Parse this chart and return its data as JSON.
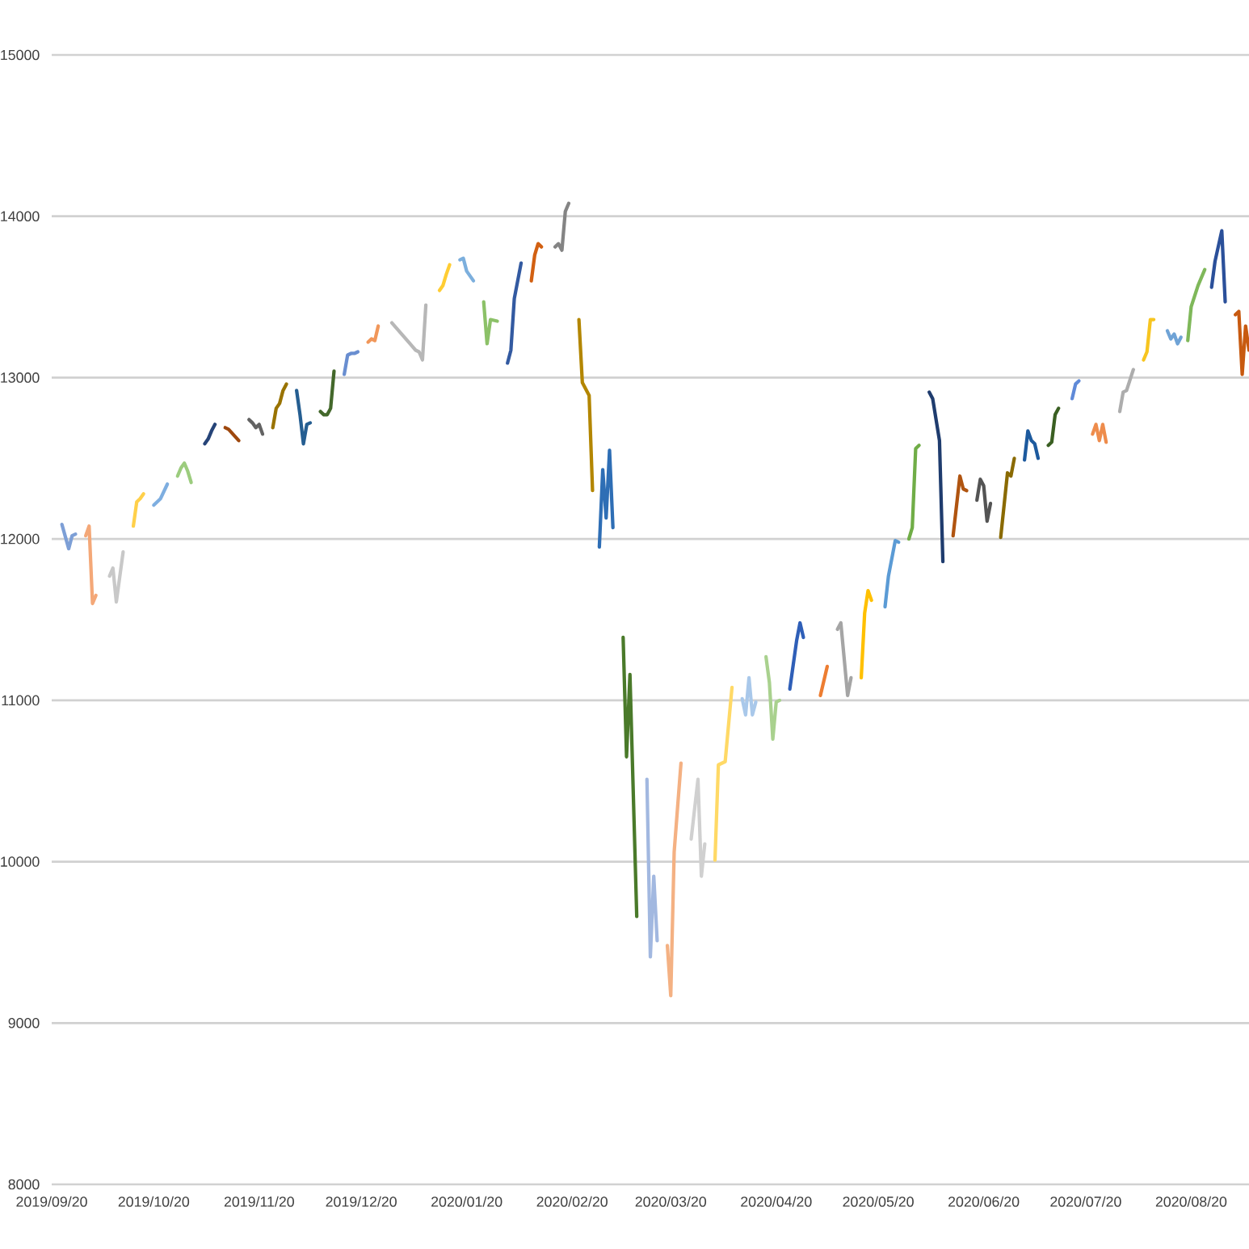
{
  "chart_data": {
    "type": "line",
    "xlim": [
      "2019-09-20",
      "2020-09-06"
    ],
    "ylim": [
      8000,
      15000
    ],
    "yticks": [
      8000,
      9000,
      10000,
      11000,
      12000,
      13000,
      14000,
      15000
    ],
    "xticks": [
      {
        "value": "2019-09-20",
        "label": "2019/09/20"
      },
      {
        "value": "2019-10-20",
        "label": "2019/10/20"
      },
      {
        "value": "2019-11-20",
        "label": "2019/11/20"
      },
      {
        "value": "2019-12-20",
        "label": "2019/12/20"
      },
      {
        "value": "2020-01-20",
        "label": "2020/01/20"
      },
      {
        "value": "2020-02-20",
        "label": "2020/02/20"
      },
      {
        "value": "2020-03-20",
        "label": "2020/03/20"
      },
      {
        "value": "2020-04-20",
        "label": "2020/04/20"
      },
      {
        "value": "2020-05-20",
        "label": "2020/05/20"
      },
      {
        "value": "2020-06-20",
        "label": "2020/06/20"
      },
      {
        "value": "2020-07-20",
        "label": "2020/07/20"
      },
      {
        "value": "2020-08-20",
        "label": "2020/08/20"
      }
    ],
    "grid": "y",
    "marker": "none",
    "line_style": "solid",
    "series": [
      {
        "color": "#7d9fd6",
        "x": [
          "2019-09-23",
          "2019-09-25",
          "2019-09-26",
          "2019-09-27"
        ],
        "values": [
          12090,
          11940,
          12020,
          12030
        ]
      },
      {
        "color": "#f4a878",
        "x": [
          "2019-09-30",
          "2019-10-01",
          "2019-10-02",
          "2019-10-03"
        ],
        "values": [
          12020,
          12080,
          11600,
          11650
        ]
      },
      {
        "color": "#c8c8c8",
        "x": [
          "2019-10-07",
          "2019-10-08",
          "2019-10-09",
          "2019-10-11"
        ],
        "values": [
          11770,
          11820,
          11610,
          11920
        ]
      },
      {
        "color": "#ffd04a",
        "x": [
          "2019-10-14",
          "2019-10-15",
          "2019-10-16",
          "2019-10-17"
        ],
        "values": [
          12080,
          12230,
          12250,
          12280
        ]
      },
      {
        "color": "#7eaee0",
        "x": [
          "2019-10-20",
          "2019-10-21",
          "2019-10-22",
          "2019-10-24"
        ],
        "values": [
          12210,
          12230,
          12250,
          12340
        ]
      },
      {
        "color": "#9ccc7e",
        "x": [
          "2019-10-27",
          "2019-10-28",
          "2019-10-29",
          "2019-10-30",
          "2019-10-31"
        ],
        "values": [
          12390,
          12440,
          12470,
          12420,
          12350
        ]
      },
      {
        "color": "#264478",
        "x": [
          "2019-11-04",
          "2019-11-05",
          "2019-11-06",
          "2019-11-07"
        ],
        "values": [
          12590,
          12620,
          12670,
          12710
        ]
      },
      {
        "color": "#9e480e",
        "x": [
          "2019-11-10",
          "2019-11-11",
          "2019-11-14"
        ],
        "values": [
          12690,
          12680,
          12610
        ]
      },
      {
        "color": "#636363",
        "x": [
          "2019-11-17",
          "2019-11-18",
          "2019-11-19",
          "2019-11-20",
          "2019-11-21"
        ],
        "values": [
          12740,
          12720,
          12690,
          12710,
          12650
        ]
      },
      {
        "color": "#997300",
        "x": [
          "2019-11-24",
          "2019-11-25",
          "2019-11-26",
          "2019-11-27",
          "2019-11-28"
        ],
        "values": [
          12690,
          12810,
          12840,
          12920,
          12960
        ]
      },
      {
        "color": "#255e91",
        "x": [
          "2019-12-01",
          "2019-12-02",
          "2019-12-03",
          "2019-12-04",
          "2019-12-05"
        ],
        "values": [
          12920,
          12770,
          12590,
          12710,
          12720
        ]
      },
      {
        "color": "#43682b",
        "x": [
          "2019-12-08",
          "2019-12-09",
          "2019-12-10",
          "2019-12-11",
          "2019-12-12"
        ],
        "values": [
          12790,
          12770,
          12770,
          12810,
          13040
        ]
      },
      {
        "color": "#698ed0",
        "x": [
          "2019-12-15",
          "2019-12-16",
          "2019-12-17",
          "2019-12-18",
          "2019-12-19"
        ],
        "values": [
          13020,
          13140,
          13150,
          13150,
          13160
        ]
      },
      {
        "color": "#f1975a",
        "x": [
          "2019-12-22",
          "2019-12-23",
          "2019-12-24",
          "2019-12-25"
        ],
        "values": [
          13220,
          13240,
          13230,
          13320
        ]
      },
      {
        "color": "#b7b7b7",
        "x": [
          "2019-12-29",
          "2020-01-05",
          "2020-01-06",
          "2020-01-07",
          "2020-01-08"
        ],
        "values": [
          13340,
          13170,
          13160,
          13110,
          13450
        ]
      },
      {
        "color": "#ffcd33",
        "x": [
          "2020-01-12",
          "2020-01-13",
          "2020-01-14",
          "2020-01-15"
        ],
        "values": [
          13540,
          13570,
          13640,
          13700
        ]
      },
      {
        "color": "#7cafdd",
        "x": [
          "2020-01-18",
          "2020-01-19",
          "2020-01-20",
          "2020-01-22"
        ],
        "values": [
          13730,
          13740,
          13660,
          13600
        ]
      },
      {
        "color": "#8cc168",
        "x": [
          "2020-01-25",
          "2020-01-26",
          "2020-01-27",
          "2020-01-29"
        ],
        "values": [
          13470,
          13210,
          13360,
          13350
        ]
      },
      {
        "color": "#335aa1",
        "x": [
          "2020-02-01",
          "2020-02-02",
          "2020-02-03",
          "2020-02-05"
        ],
        "values": [
          13090,
          13170,
          13490,
          13710
        ]
      },
      {
        "color": "#d26012",
        "x": [
          "2020-02-08",
          "2020-02-09",
          "2020-02-10",
          "2020-02-11"
        ],
        "values": [
          13600,
          13760,
          13830,
          13810
        ]
      },
      {
        "color": "#848484",
        "x": [
          "2020-02-15",
          "2020-02-16",
          "2020-02-17",
          "2020-02-18",
          "2020-02-19"
        ],
        "values": [
          13810,
          13830,
          13790,
          14030,
          14080
        ]
      },
      {
        "color": "#b38600",
        "x": [
          "2020-02-22",
          "2020-02-23",
          "2020-02-25",
          "2020-02-26"
        ],
        "values": [
          13360,
          12970,
          12890,
          12300
        ]
      },
      {
        "color": "#2e6eb5",
        "x": [
          "2020-02-28",
          "2020-02-29",
          "2020-03-01",
          "2020-03-02",
          "2020-03-03"
        ],
        "values": [
          11950,
          12430,
          12130,
          12550,
          12070
        ]
      },
      {
        "color": "#4a7a2a",
        "x": [
          "2020-03-06",
          "2020-03-07",
          "2020-03-08",
          "2020-03-10"
        ],
        "values": [
          11390,
          10650,
          11160,
          9660
        ]
      },
      {
        "color": "#a2b8e0",
        "x": [
          "2020-03-13",
          "2020-03-14",
          "2020-03-15",
          "2020-03-16"
        ],
        "values": [
          10510,
          9410,
          9910,
          9510
        ]
      },
      {
        "color": "#f4b183",
        "x": [
          "2020-03-19",
          "2020-03-20",
          "2020-03-21",
          "2020-03-23"
        ],
        "values": [
          9480,
          9170,
          10060,
          10610
        ]
      },
      {
        "color": "#d0d0d0",
        "x": [
          "2020-03-26",
          "2020-03-28",
          "2020-03-29",
          "2020-03-30"
        ],
        "values": [
          10140,
          10510,
          9910,
          10110
        ]
      },
      {
        "color": "#ffd966",
        "x": [
          "2020-04-02",
          "2020-04-03",
          "2020-04-05",
          "2020-04-07"
        ],
        "values": [
          10010,
          10600,
          10620,
          11080
        ]
      },
      {
        "color": "#a9c8ea",
        "x": [
          "2020-04-10",
          "2020-04-11",
          "2020-04-12",
          "2020-04-13",
          "2020-04-14"
        ],
        "values": [
          11010,
          10910,
          11140,
          10910,
          10990
        ]
      },
      {
        "color": "#a9d18e",
        "x": [
          "2020-04-17",
          "2020-04-18",
          "2020-04-19",
          "2020-04-20",
          "2020-04-21"
        ],
        "values": [
          11270,
          11110,
          10760,
          10990,
          11000
        ]
      },
      {
        "color": "#2f5fb8",
        "x": [
          "2020-04-24",
          "2020-04-26",
          "2020-04-27",
          "2020-04-28"
        ],
        "values": [
          11070,
          11370,
          11480,
          11390
        ]
      },
      {
        "color": "#ed7d31",
        "x": [
          "2020-05-03",
          "2020-05-05"
        ],
        "values": [
          11030,
          11210
        ]
      },
      {
        "color": "#a5a5a5",
        "x": [
          "2020-05-08",
          "2020-05-09",
          "2020-05-11",
          "2020-05-12"
        ],
        "values": [
          11440,
          11480,
          11030,
          11140
        ]
      },
      {
        "color": "#ffc000",
        "x": [
          "2020-05-15",
          "2020-05-16",
          "2020-05-17",
          "2020-05-18"
        ],
        "values": [
          11140,
          11540,
          11680,
          11620
        ]
      },
      {
        "color": "#5b9bd5",
        "x": [
          "2020-05-22",
          "2020-05-23",
          "2020-05-25",
          "2020-05-26"
        ],
        "values": [
          11580,
          11770,
          11990,
          11980
        ]
      },
      {
        "color": "#70ad47",
        "x": [
          "2020-05-29",
          "2020-05-30",
          "2020-05-31",
          "2020-06-01"
        ],
        "values": [
          12000,
          12070,
          12560,
          12580
        ]
      },
      {
        "color": "#1f3c6e",
        "x": [
          "2020-06-04",
          "2020-06-05",
          "2020-06-07",
          "2020-06-08"
        ],
        "values": [
          12910,
          12870,
          12610,
          11860
        ]
      },
      {
        "color": "#b05410",
        "x": [
          "2020-06-11",
          "2020-06-13",
          "2020-06-14",
          "2020-06-15"
        ],
        "values": [
          12020,
          12390,
          12310,
          12300
        ]
      },
      {
        "color": "#545454",
        "x": [
          "2020-06-18",
          "2020-06-19",
          "2020-06-20",
          "2020-06-21",
          "2020-06-22"
        ],
        "values": [
          12240,
          12370,
          12330,
          12110,
          12220
        ]
      },
      {
        "color": "#8a6a00",
        "x": [
          "2020-06-25",
          "2020-06-27",
          "2020-06-28",
          "2020-06-29"
        ],
        "values": [
          12010,
          12410,
          12390,
          12500
        ]
      },
      {
        "color": "#1d5a9e",
        "x": [
          "2020-07-02",
          "2020-07-03",
          "2020-07-04",
          "2020-07-05",
          "2020-07-06"
        ],
        "values": [
          12490,
          12670,
          12610,
          12590,
          12500
        ]
      },
      {
        "color": "#3a5f22",
        "x": [
          "2020-07-09",
          "2020-07-10",
          "2020-07-11",
          "2020-07-12"
        ],
        "values": [
          12580,
          12600,
          12770,
          12810
        ]
      },
      {
        "color": "#5f8ad8",
        "x": [
          "2020-07-16",
          "2020-07-17",
          "2020-07-18"
        ],
        "values": [
          12870,
          12960,
          12980
        ]
      },
      {
        "color": "#ee8c4c",
        "x": [
          "2020-07-22",
          "2020-07-23",
          "2020-07-24",
          "2020-07-25",
          "2020-07-26"
        ],
        "values": [
          12650,
          12710,
          12610,
          12710,
          12600
        ]
      },
      {
        "color": "#adadad",
        "x": [
          "2020-07-30",
          "2020-07-31",
          "2020-08-01",
          "2020-08-03"
        ],
        "values": [
          12790,
          12910,
          12920,
          13050
        ]
      },
      {
        "color": "#f7c520",
        "x": [
          "2020-08-06",
          "2020-08-07",
          "2020-08-08",
          "2020-08-09"
        ],
        "values": [
          13110,
          13160,
          13360,
          13360
        ]
      },
      {
        "color": "#6fa3d6",
        "x": [
          "2020-08-13",
          "2020-08-14",
          "2020-08-15",
          "2020-08-16",
          "2020-08-17"
        ],
        "values": [
          13290,
          13240,
          13270,
          13210,
          13250
        ]
      },
      {
        "color": "#7fb85a",
        "x": [
          "2020-08-19",
          "2020-08-20",
          "2020-08-22",
          "2020-08-24"
        ],
        "values": [
          13230,
          13440,
          13570,
          13670
        ]
      },
      {
        "color": "#2b509a",
        "x": [
          "2020-08-26",
          "2020-08-27",
          "2020-08-29",
          "2020-08-30"
        ],
        "values": [
          13560,
          13720,
          13910,
          13470
        ]
      },
      {
        "color": "#c85a10",
        "x": [
          "2020-09-02",
          "2020-09-03",
          "2020-09-04",
          "2020-09-05",
          "2020-09-06"
        ],
        "values": [
          13390,
          13410,
          13020,
          13320,
          13170
        ]
      }
    ]
  }
}
